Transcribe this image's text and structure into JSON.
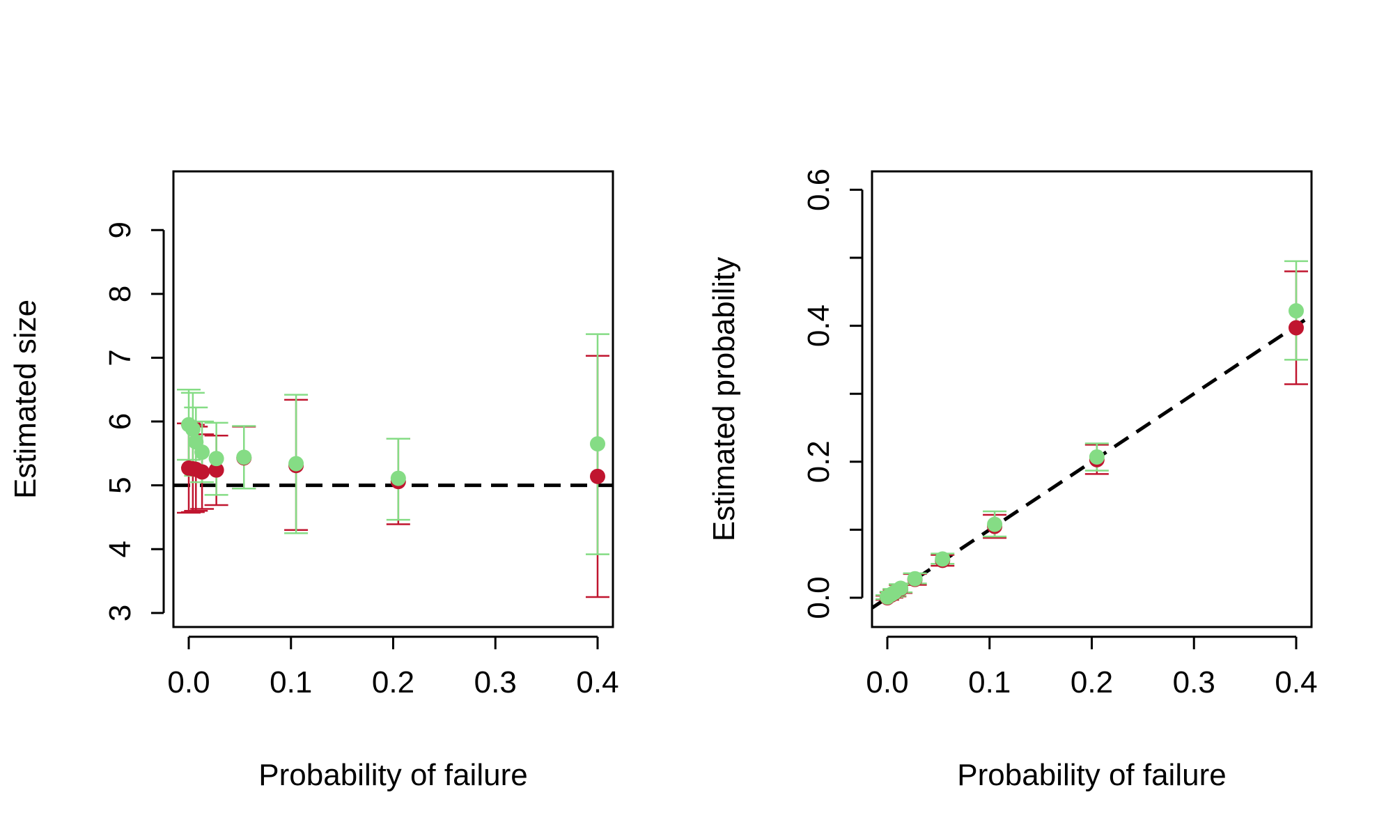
{
  "colors": {
    "series_red": "#C0152F",
    "series_green": "#85DC85",
    "reference_line": "#000000",
    "axis": "#000000"
  },
  "chart_data": [
    {
      "type": "scatter",
      "title": "",
      "xlabel": "Probability of failure",
      "ylabel": "Estimated size",
      "xlim": [
        -0.015,
        0.415
      ],
      "ylim": [
        2.78,
        9.92
      ],
      "x_ticks": [
        0.0,
        0.1,
        0.2,
        0.3,
        0.4
      ],
      "x_tick_labels": [
        "0.0",
        "0.1",
        "0.2",
        "0.3",
        "0.4"
      ],
      "y_ticks": [
        3,
        4,
        5,
        6,
        7,
        8,
        9
      ],
      "y_tick_labels": [
        "3",
        "4",
        "5",
        "6",
        "7",
        "8",
        "9"
      ],
      "grid": false,
      "reference_line": {
        "type": "horizontal",
        "y": 5,
        "style": "dashed"
      },
      "series": [
        {
          "color": "#C0152F",
          "points": [
            {
              "x": 0.0,
              "y": 5.27,
              "lo": 4.57,
              "hi": 5.97
            },
            {
              "x": 0.004,
              "y": 5.26,
              "lo": 4.58,
              "hi": 5.95
            },
            {
              "x": 0.007,
              "y": 5.25,
              "lo": 4.6,
              "hi": 5.92
            },
            {
              "x": 0.013,
              "y": 5.21,
              "lo": 4.63,
              "hi": 5.8
            },
            {
              "x": 0.027,
              "y": 5.24,
              "lo": 4.69,
              "hi": 5.78
            },
            {
              "x": 0.054,
              "y": 5.43,
              "lo": 4.95,
              "hi": 5.92
            },
            {
              "x": 0.105,
              "y": 5.31,
              "lo": 4.3,
              "hi": 6.34
            },
            {
              "x": 0.205,
              "y": 5.06,
              "lo": 4.39,
              "hi": 5.73
            },
            {
              "x": 0.4,
              "y": 5.14,
              "lo": 3.25,
              "hi": 7.03
            }
          ]
        },
        {
          "color": "#85DC85",
          "points": [
            {
              "x": 0.0,
              "y": 5.95,
              "lo": 5.4,
              "hi": 6.5
            },
            {
              "x": 0.004,
              "y": 5.88,
              "lo": 5.28,
              "hi": 6.45
            },
            {
              "x": 0.007,
              "y": 5.68,
              "lo": 5.15,
              "hi": 6.22
            },
            {
              "x": 0.013,
              "y": 5.52,
              "lo": 5.05,
              "hi": 6.0
            },
            {
              "x": 0.027,
              "y": 5.42,
              "lo": 4.85,
              "hi": 5.98
            },
            {
              "x": 0.054,
              "y": 5.44,
              "lo": 4.95,
              "hi": 5.93
            },
            {
              "x": 0.105,
              "y": 5.34,
              "lo": 4.25,
              "hi": 6.42
            },
            {
              "x": 0.205,
              "y": 5.11,
              "lo": 4.46,
              "hi": 5.73
            },
            {
              "x": 0.4,
              "y": 5.65,
              "lo": 3.92,
              "hi": 7.37
            }
          ]
        }
      ]
    },
    {
      "type": "scatter",
      "title": "",
      "xlabel": "Probability of failure",
      "ylabel": "Estimated probability",
      "xlim": [
        -0.015,
        0.415
      ],
      "ylim": [
        -0.043,
        0.627
      ],
      "x_ticks": [
        0.0,
        0.1,
        0.2,
        0.3,
        0.4
      ],
      "x_tick_labels": [
        "0.0",
        "0.1",
        "0.2",
        "0.3",
        "0.4"
      ],
      "y_ticks": [
        0.0,
        0.1,
        0.2,
        0.3,
        0.4,
        0.5,
        0.6
      ],
      "y_tick_labels": [
        "0.0",
        "",
        "0.2",
        "",
        "0.4",
        "",
        "0.6"
      ],
      "grid": false,
      "reference_line": {
        "type": "diagonal",
        "intercept": 0,
        "slope": 1,
        "style": "dashed"
      },
      "series": [
        {
          "color": "#C0152F",
          "points": [
            {
              "x": 0.0,
              "y": 0.0,
              "lo": -0.003,
              "hi": 0.003
            },
            {
              "x": 0.004,
              "y": 0.004,
              "lo": 0.0,
              "hi": 0.008
            },
            {
              "x": 0.007,
              "y": 0.007,
              "lo": 0.002,
              "hi": 0.012
            },
            {
              "x": 0.013,
              "y": 0.013,
              "lo": 0.007,
              "hi": 0.019
            },
            {
              "x": 0.027,
              "y": 0.027,
              "lo": 0.019,
              "hi": 0.035
            },
            {
              "x": 0.054,
              "y": 0.055,
              "lo": 0.047,
              "hi": 0.063
            },
            {
              "x": 0.105,
              "y": 0.105,
              "lo": 0.088,
              "hi": 0.122
            },
            {
              "x": 0.205,
              "y": 0.203,
              "lo": 0.182,
              "hi": 0.225
            },
            {
              "x": 0.4,
              "y": 0.397,
              "lo": 0.314,
              "hi": 0.48
            }
          ]
        },
        {
          "color": "#85DC85",
          "points": [
            {
              "x": 0.0,
              "y": 0.001,
              "lo": -0.002,
              "hi": 0.004
            },
            {
              "x": 0.004,
              "y": 0.005,
              "lo": 0.001,
              "hi": 0.009
            },
            {
              "x": 0.007,
              "y": 0.008,
              "lo": 0.003,
              "hi": 0.013
            },
            {
              "x": 0.013,
              "y": 0.014,
              "lo": 0.008,
              "hi": 0.02
            },
            {
              "x": 0.027,
              "y": 0.028,
              "lo": 0.021,
              "hi": 0.036
            },
            {
              "x": 0.054,
              "y": 0.057,
              "lo": 0.05,
              "hi": 0.065
            },
            {
              "x": 0.105,
              "y": 0.108,
              "lo": 0.09,
              "hi": 0.127
            },
            {
              "x": 0.205,
              "y": 0.207,
              "lo": 0.187,
              "hi": 0.227
            },
            {
              "x": 0.4,
              "y": 0.422,
              "lo": 0.35,
              "hi": 0.495
            }
          ]
        }
      ]
    }
  ]
}
